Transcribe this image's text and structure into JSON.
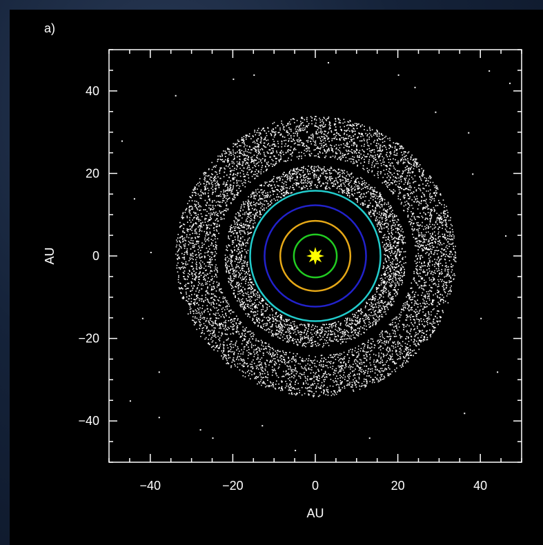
{
  "panel_label": "a)",
  "chart_data": {
    "type": "scatter",
    "xlabel": "AU",
    "ylabel": "AU",
    "xlim": [
      -50,
      50
    ],
    "ylim": [
      -50,
      50
    ],
    "xticks": [
      -40,
      -20,
      0,
      20,
      40
    ],
    "yticks": [
      -40,
      -20,
      0,
      20,
      40
    ],
    "xtick_labels": [
      "−40",
      "−20",
      "0",
      "20",
      "40"
    ],
    "ytick_labels": [
      "−40",
      "−20",
      "0",
      "20",
      "40"
    ],
    "grid": false,
    "background": "#000000",
    "central_star": {
      "x": 0,
      "y": 0,
      "color": "#ffff00"
    },
    "orbits": [
      {
        "radius": 5.2,
        "color": "#22cc22"
      },
      {
        "radius": 8.5,
        "color": "#e6a817"
      },
      {
        "radius": 12.3,
        "color": "#2222cc"
      },
      {
        "radius": 15.8,
        "color": "#22cccc"
      }
    ],
    "particle_belts": [
      {
        "inner_radius": 16.5,
        "outer_radius": 22.0,
        "color": "#ffffff"
      },
      {
        "inner_radius": 24.0,
        "outer_radius": 34.0,
        "color": "#ffffff"
      }
    ],
    "scattered_points": [
      {
        "x": -45,
        "y": -35
      },
      {
        "x": -38,
        "y": -39
      },
      {
        "x": -28,
        "y": -42
      },
      {
        "x": -44,
        "y": 14
      },
      {
        "x": -40,
        "y": 1
      },
      {
        "x": -42,
        "y": -15
      },
      {
        "x": -34,
        "y": 39
      },
      {
        "x": -38,
        "y": -28
      },
      {
        "x": -20,
        "y": 43
      },
      {
        "x": 3,
        "y": 47
      },
      {
        "x": 24,
        "y": 41
      },
      {
        "x": 42,
        "y": 45
      },
      {
        "x": 37,
        "y": 30
      },
      {
        "x": 46,
        "y": 5
      },
      {
        "x": 40,
        "y": -15
      },
      {
        "x": 36,
        "y": -38
      },
      {
        "x": 13,
        "y": -44
      },
      {
        "x": -5,
        "y": -47
      },
      {
        "x": -13,
        "y": -41
      },
      {
        "x": 38,
        "y": 20
      },
      {
        "x": 20,
        "y": 44
      },
      {
        "x": -25,
        "y": -44
      },
      {
        "x": -47,
        "y": 28
      },
      {
        "x": 44,
        "y": -28
      },
      {
        "x": -15,
        "y": 44
      },
      {
        "x": 29,
        "y": 35
      },
      {
        "x": 47,
        "y": 42
      }
    ]
  }
}
